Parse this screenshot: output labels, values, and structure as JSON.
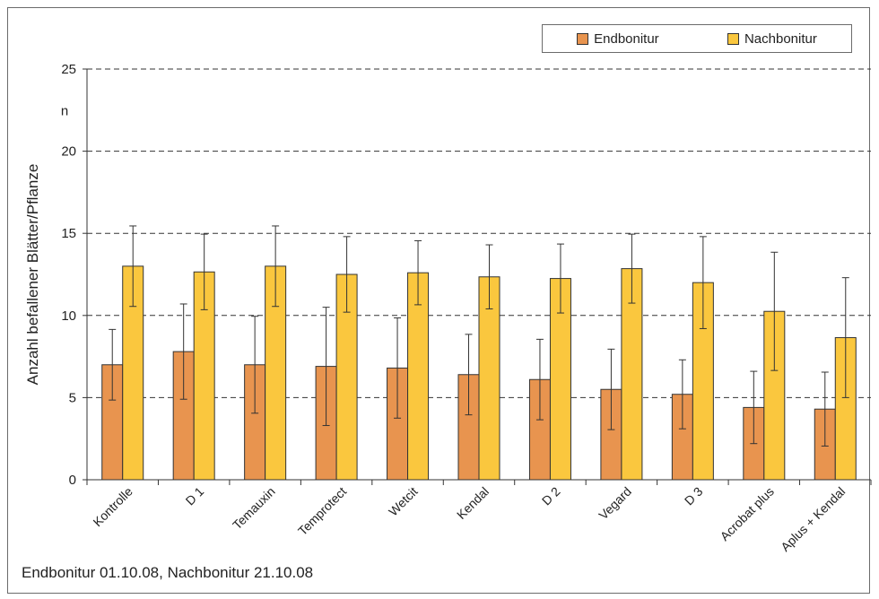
{
  "chart_data": {
    "type": "bar",
    "categories": [
      "Kontrolle",
      "D 1",
      "Temauxin",
      "Temprotect",
      "Wetcit",
      "Kendal",
      "D 2",
      "Vegard",
      "D 3",
      "Acrobat plus",
      "Aplus + Kendal"
    ],
    "series": [
      {
        "name": "Endbonitur",
        "color": "#E8944F",
        "values": [
          7.0,
          7.8,
          7.0,
          6.9,
          6.8,
          6.4,
          6.1,
          5.5,
          5.2,
          4.4,
          4.3
        ],
        "error": [
          2.15,
          2.9,
          2.95,
          3.6,
          3.05,
          2.45,
          2.45,
          2.45,
          2.1,
          2.2,
          2.25
        ]
      },
      {
        "name": "Nachbonitur",
        "color": "#FAC73E",
        "values": [
          13.0,
          12.65,
          13.0,
          12.5,
          12.6,
          12.35,
          12.25,
          12.85,
          12.0,
          10.25,
          8.65
        ],
        "error": [
          2.45,
          2.3,
          2.45,
          2.3,
          1.95,
          1.95,
          2.1,
          2.1,
          2.8,
          3.6,
          3.65
        ]
      }
    ],
    "ylabel": "Anzahl befallener Blätter/Pflanze",
    "unit_label": "n",
    "ylim": [
      0,
      25
    ],
    "yticks": [
      0,
      5,
      10,
      15,
      20,
      25
    ],
    "grid": "dashed horizontal",
    "legend": "top-right",
    "footnote": "Endbonitur 01.10.08, Nachbonitur 21.10.08"
  }
}
